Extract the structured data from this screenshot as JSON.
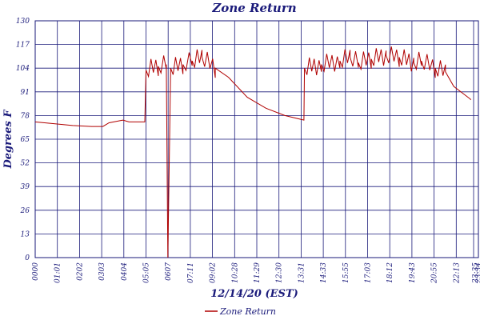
{
  "chart_data": {
    "type": "line",
    "title": "Zone Return",
    "xlabel": "12/14/20 (EST)",
    "ylabel": "Degrees F",
    "y_tick_labels": [
      "0",
      "13",
      "26",
      "39",
      "52",
      "65",
      "78",
      "91",
      "104",
      "117",
      "130"
    ],
    "x_tick_labels": [
      "0000",
      "01:01",
      "0202",
      "0303",
      "0404",
      "05:05",
      "0607",
      "07:11",
      "09:02",
      "10:28",
      "11:29",
      "12:30",
      "13:31",
      "14:33",
      "15:55",
      "17:03",
      "18:12",
      "19:43",
      "20:55",
      "22:13",
      "23:34",
      "23:35"
    ],
    "ylim": [
      0,
      130
    ],
    "grid": true,
    "legend_position": "bottom",
    "colors": {
      "series": "#b00000",
      "grid": "#1a1a7a",
      "text": "#1a1a7a"
    },
    "series": [
      {
        "name": "Zone Return",
        "x": [
          "00:00",
          "01:01",
          "02:02",
          "03:03",
          "03:40",
          "04:00",
          "04:45",
          "05:05",
          "05:56",
          "06:00",
          "06:40",
          "07:06",
          "07:11",
          "07:20",
          "08:00",
          "08:30",
          "09:02",
          "09:45",
          "10:28",
          "11:29",
          "12:30",
          "13:31",
          "14:33",
          "14:35",
          "15:30",
          "16:30",
          "17:03",
          "17:30",
          "18:12",
          "19:00",
          "19:43",
          "20:30",
          "20:55",
          "21:40",
          "22:13",
          "22:40",
          "23:34",
          "23:35"
        ],
        "y": [
          74.5,
          73.5,
          72.5,
          72.0,
          72.0,
          74.0,
          75.5,
          74.5,
          74.5,
          103.0,
          105.0,
          106.0,
          0.0,
          104.0,
          106.0,
          108.0,
          110.0,
          104.0,
          99.0,
          88.0,
          82.0,
          78.0,
          75.5,
          104.0,
          106.0,
          108.0,
          110.0,
          107.0,
          109.0,
          111.0,
          110.0,
          107.0,
          108.0,
          104.0,
          102.0,
          94.0,
          87.0,
          86.5
        ]
      }
    ]
  }
}
